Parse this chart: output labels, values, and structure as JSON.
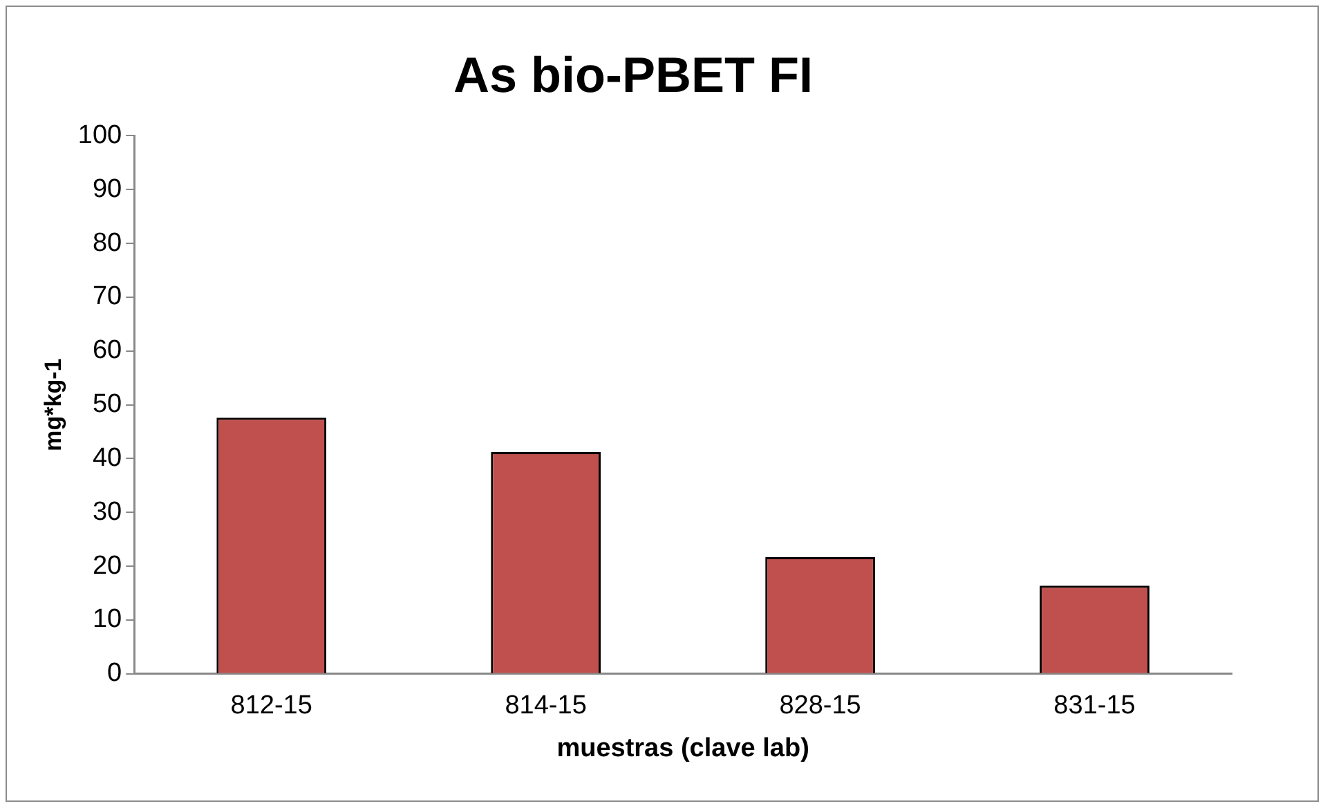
{
  "chart_data": {
    "type": "bar",
    "title": "As bio-PBET FI",
    "xlabel": "muestras (clave lab)",
    "ylabel": "mg*kg-1",
    "categories": [
      "812-15",
      "814-15",
      "828-15",
      "831-15"
    ],
    "values": [
      47.6,
      41.2,
      21.7,
      16.4
    ],
    "color": "#c0504d",
    "ylim": [
      0,
      100
    ],
    "yticks": [
      0,
      10,
      20,
      30,
      40,
      50,
      60,
      70,
      80,
      90,
      100
    ],
    "grid": false,
    "legend": false
  }
}
